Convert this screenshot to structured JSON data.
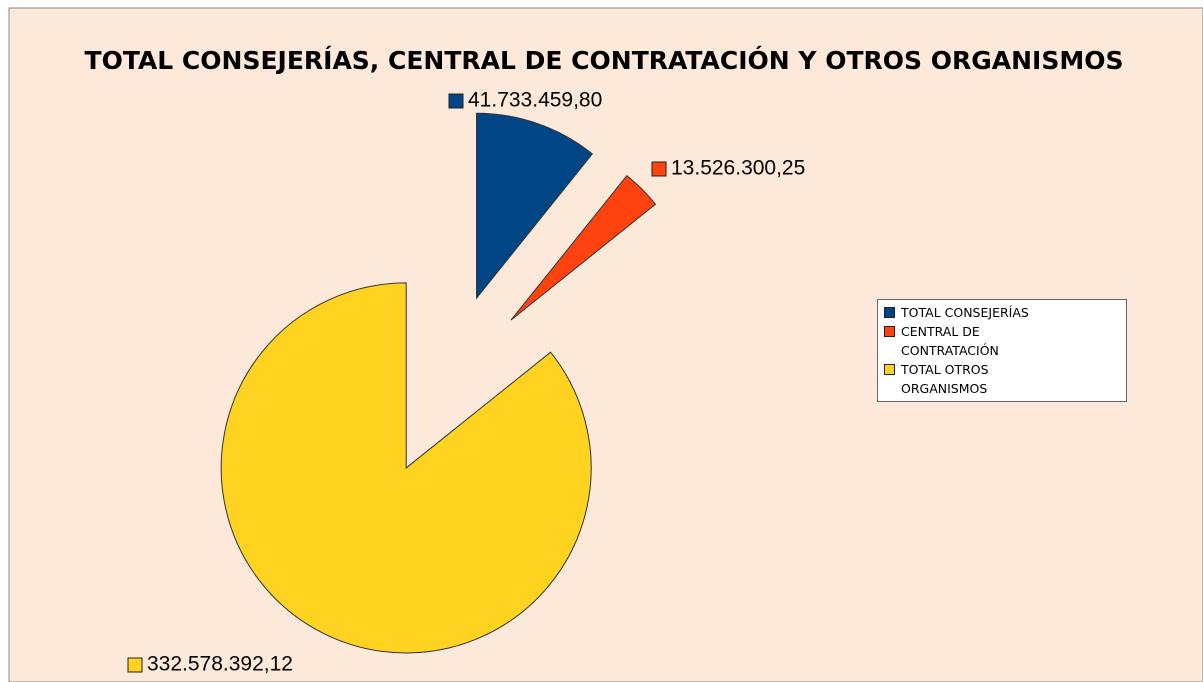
{
  "chart_data": {
    "type": "pie",
    "title": "TOTAL CONSEJERÍAS, CENTRAL DE CONTRATACIÓN Y OTROS ORGANISMOS",
    "categories": [
      "TOTAL CONSEJERÍAS",
      "CENTRAL DE CONTRATACIÓN",
      "TOTAL OTROS ORGANISMOS"
    ],
    "values": [
      41733459.8,
      13526300.25,
      332578392.12
    ],
    "value_labels": [
      "41.733.459,80",
      "13.526.300,25",
      "332.578.392,12"
    ],
    "colors": [
      "#004586",
      "#ff420e",
      "#ffd320"
    ],
    "legend": "right"
  }
}
